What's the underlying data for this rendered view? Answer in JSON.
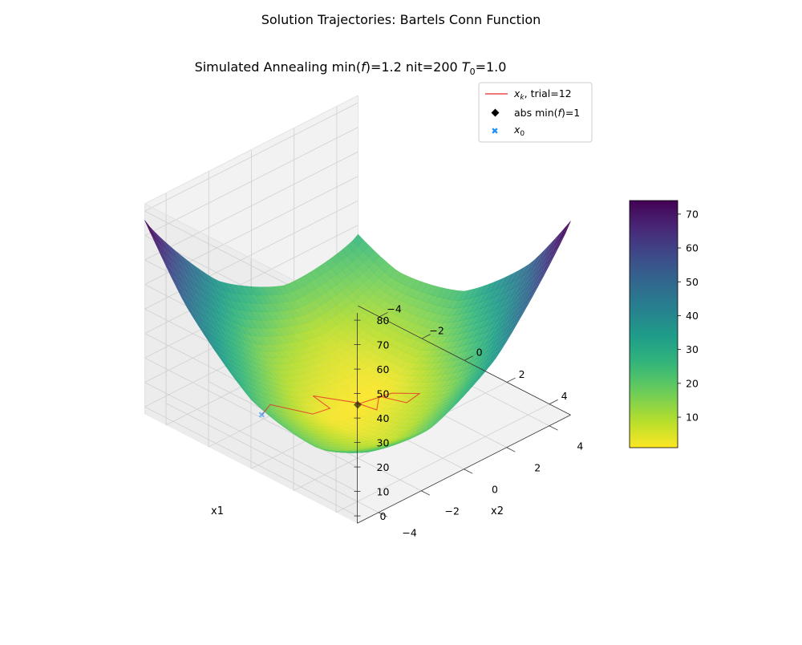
{
  "figure": {
    "suptitle": "Solution Trajectories: Bartels Conn Function",
    "title_prefix": "Simulated Annealing min(",
    "title_f": "f",
    "title_mid": ")=1.2 nit=200 ",
    "title_T": "T",
    "title_T_sub": "0",
    "title_suffix": "=1.0"
  },
  "chart_data": {
    "type": "surface3d",
    "function": "bartels_conn",
    "x_label": "x1",
    "y_label": "x2",
    "x_range": [
      -5,
      5
    ],
    "y_range": [
      -5,
      5
    ],
    "z_range": [
      -3,
      83
    ],
    "x_ticks": [
      "4",
      "2",
      "0",
      "−2",
      "−4"
    ],
    "x_tick_values": [
      4,
      2,
      0,
      -2,
      -4
    ],
    "y_ticks": [
      "−4",
      "−2",
      "0",
      "2",
      "4"
    ],
    "y_tick_values": [
      -4,
      -2,
      0,
      2,
      4
    ],
    "z_ticks": [
      "0",
      "10",
      "20",
      "30",
      "40",
      "50",
      "60",
      "70",
      "80"
    ],
    "z_tick_values": [
      0,
      10,
      20,
      30,
      40,
      50,
      60,
      70,
      80
    ],
    "grid": true,
    "colormap": "viridis_r",
    "colorbar": {
      "min": 1,
      "max": 74,
      "ticks": [
        "10",
        "20",
        "30",
        "40",
        "50",
        "60",
        "70"
      ],
      "tick_values": [
        10,
        20,
        30,
        40,
        50,
        60,
        70
      ]
    },
    "trajectory": {
      "name_sym": "x",
      "name_sub": "k",
      "name_suffix": ", trial=12",
      "color": "#e8272a",
      "points": [
        [
          -0.2,
          -4.3,
          15.0
        ],
        [
          -0.7,
          -3.4,
          13.0
        ],
        [
          0.9,
          -3.0,
          14.5
        ],
        [
          0.7,
          -2.0,
          11.5
        ],
        [
          -0.5,
          -1.6,
          9.5
        ],
        [
          0.5,
          -0.6,
          6.8
        ],
        [
          1.3,
          -0.4,
          6.5
        ],
        [
          0.5,
          0.5,
          4.5
        ],
        [
          1.3,
          1.0,
          3.2
        ],
        [
          1.1,
          1.8,
          2.5
        ],
        [
          0.4,
          1.2,
          2.2
        ],
        [
          0.0,
          0.0,
          1.2
        ]
      ]
    },
    "global_min": {
      "label_prefix": "abs min(",
      "label_f": "f",
      "label_suffix": ")=1",
      "x": 0,
      "y": 0,
      "z": 1,
      "color": "#000000"
    },
    "start": {
      "name_sym": "x",
      "name_sub": "0",
      "x": -0.2,
      "y": -4.3,
      "z": 15.0,
      "color": "#1e8ff5"
    },
    "legend_loc": "upper right"
  }
}
